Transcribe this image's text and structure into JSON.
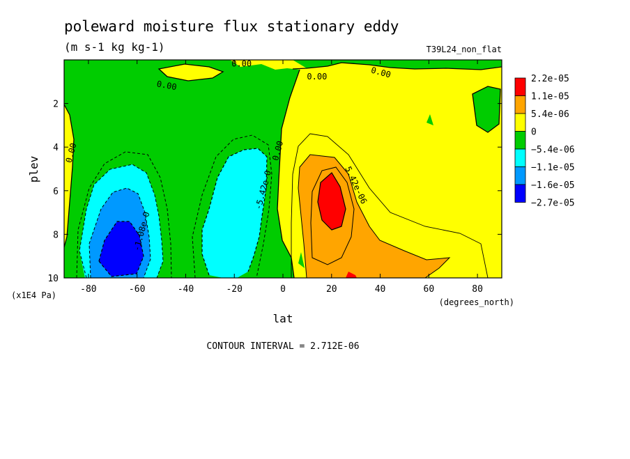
{
  "chart_data": {
    "type": "heatmap",
    "title": "poleward moisture flux stationary eddy",
    "subtitle": "(m s-1 kg kg-1)",
    "run_label": "T39L24_non_flat",
    "xlabel": "lat",
    "ylabel": "plev",
    "x_units": "(degrees_north)",
    "y_units": "(x1E4 Pa)",
    "xlim": [
      -90,
      90
    ],
    "ylim": [
      10,
      0
    ],
    "x_ticks": [
      "-80",
      "-60",
      "-40",
      "-20",
      "0",
      "20",
      "40",
      "60",
      "80"
    ],
    "x_tick_values": [
      -80,
      -60,
      -40,
      -20,
      0,
      20,
      40,
      60,
      80
    ],
    "y_ticks": [
      "2",
      "4",
      "6",
      "8",
      "10"
    ],
    "y_tick_values": [
      2,
      4,
      6,
      8,
      10
    ],
    "footer": "CONTOUR INTERVAL = 2.712E-06",
    "legend_position": "right",
    "colorbar": {
      "labels": [
        "2.2e-05",
        "1.1e-05",
        "5.4e-06",
        "0",
        "−5.4e-06",
        "−1.1e-05",
        "−1.6e-05",
        "−2.7e-05"
      ],
      "colors": [
        "#ff0000",
        "#ffa500",
        "#ffff00",
        "#00cc00",
        "#00ffff",
        "#0099ff",
        "#0000ff"
      ]
    },
    "contour_labels": [
      {
        "text": "0.00",
        "lat": -17,
        "plev": 0.3
      },
      {
        "text": "0.00",
        "lat": -48,
        "plev": 1.3
      },
      {
        "text": "0.00",
        "lat": 14,
        "plev": 0.9
      },
      {
        "text": "0.00",
        "lat": 40,
        "plev": 0.7
      },
      {
        "text": "0.00",
        "lat": -86,
        "plev": 4.3
      },
      {
        "text": "0.00",
        "lat": -1,
        "plev": 4.2
      },
      {
        "text": "5.42e-06",
        "lat": 29,
        "plev": 5.8
      },
      {
        "text": "-5.42e-0",
        "lat": -7,
        "plev": 6.0
      },
      {
        "text": "-1.08e-0",
        "lat": -57,
        "plev": 7.9
      }
    ]
  }
}
